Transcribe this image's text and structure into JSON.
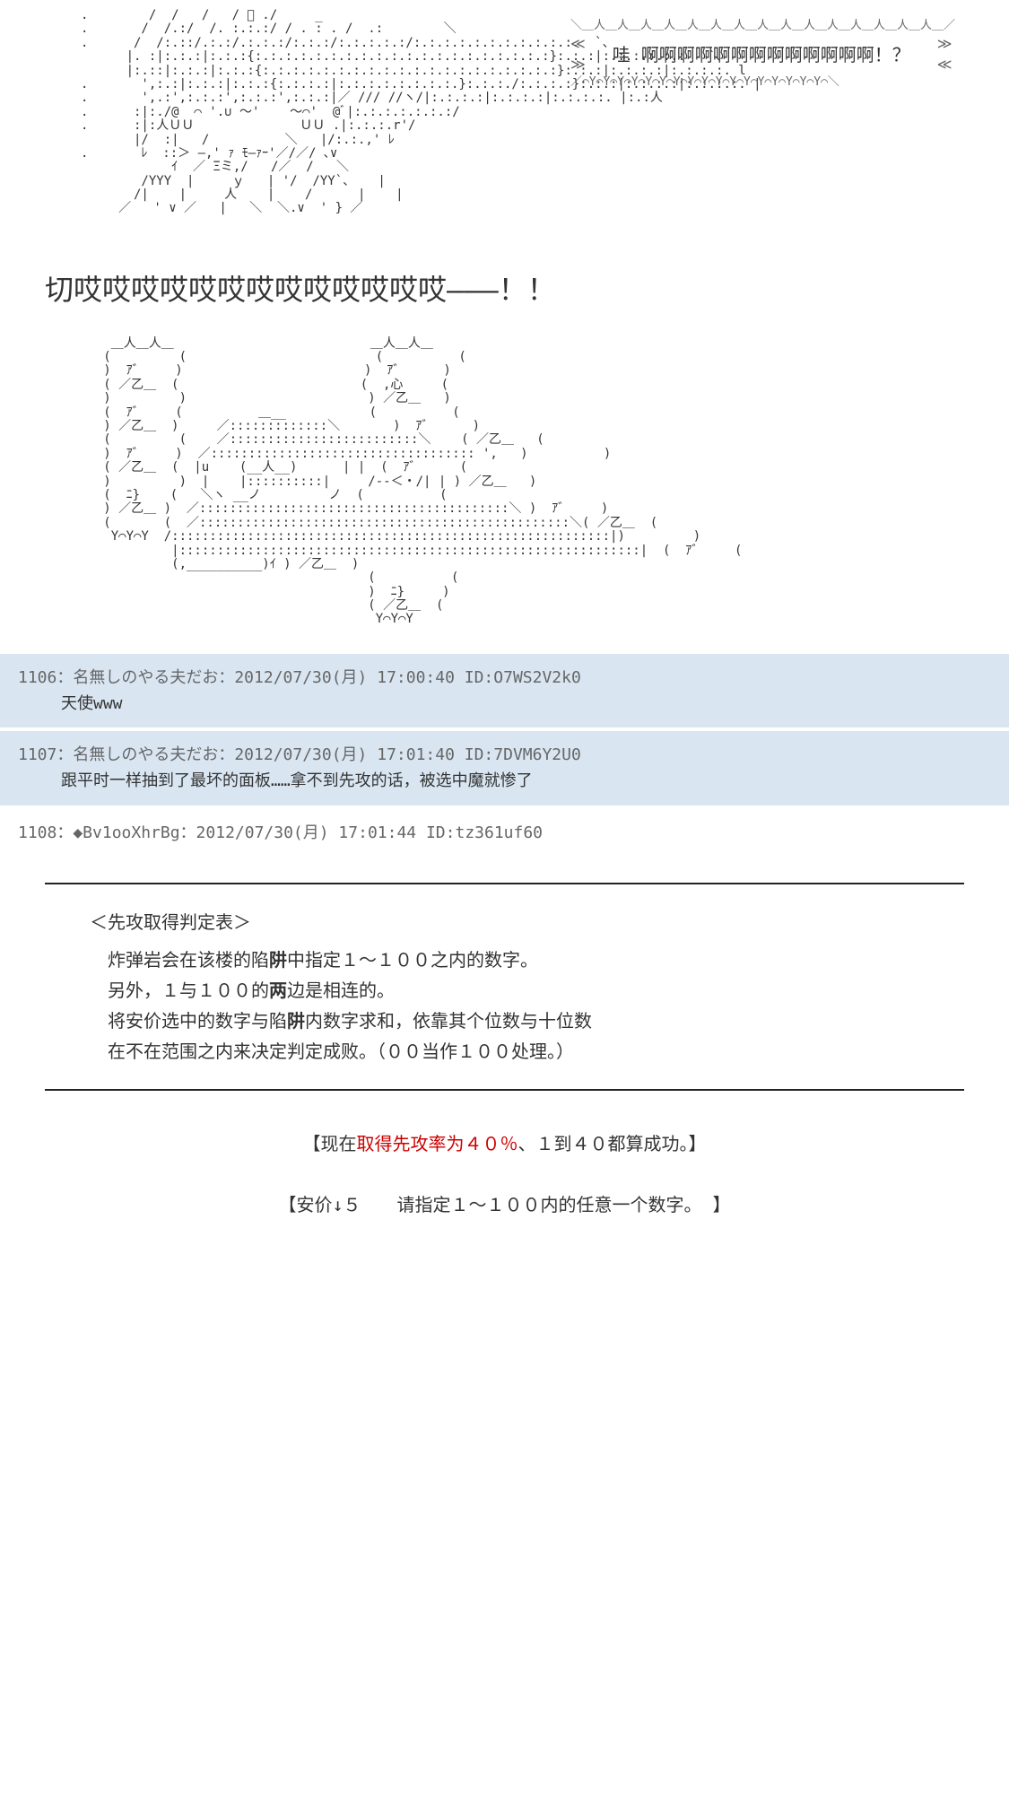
{
  "ascii1": ".        /  /   /   / ﾞ ./     _\n.       /  /.:/  /. :.:.:/ / . : . /  .:        ＼\n.      /  /:.::/.:.:/.:.:.:/:.:.:/:.:.:.:.:/:.:.:.:.:.:.:.:.:.:.:.  `、\n      |. :|:.:.:|:.:.:{:.:.:.:.:.:.:.:.:.:.:.:.:.:.:.:.:.:.:.:}:.:.:|:.:.:.:.:.:   `、\n      |:.::|:.:.:|:.:.:{:.:.:.:.:.:.:.:.:.:.:.:.:.:.:.:.:.:.:.:}:.:.:|:.:.:.:|:.:.:.:. l\n.       ',:.:|:.:.:|:.:.:{:.:.:.:|:.:.:.:.:.:.:.:.}:.:.:./:.:.:.:}:.:.:|:.:.:.:|:.:.:.:. |\n.       ',.:',:.:.:',:.:.:',:.:.:|／ /// //ヽ/|:.:.:.:|:.:.:.:|:.:.:.:. |:.:人\n.      :|:./@  ⌒ '.∪ ～'    ～⌒'  @ﾞ|:.:.:.:.:.:.:/\n.      :|:人ＵＵ              ＵＵ .|:.:.:.r'/\n       |/  :|   /          ＼   |/:.:.,' ﾚ\n.       ﾚ  ::＞ ―,' ｧ ﾓ―ｧｰ'／/／/ ､∨\n            ｲ  ／ Ξミ,/   /／  /   ＼\n        /YYY  |     ｙ   | '/  /YY`、   |\n       /|    |     人    |    /      |    |\n     ／   ' ∨ ／   |   ＼  ＼.∨  ' } ／",
  "speech": "哇 啊啊啊啊啊啊啊啊啊啊啊啊啊！？",
  "shout": "切哎哎哎哎哎哎哎哎哎哎哎哎哎———！！",
  "ascii2": "    ＿人＿人＿                          ＿人＿人＿\n   (         (                         (          (\n   )  ｱ゛    )                        )  ｱ゛     )\n   ( ／乙＿  (                        (  ,心     (\n   )         )                        ) ／乙＿   )\n   (  ｱ゛    (          ＿__           (          (\n   ) ／乙＿  )     ／:::::::::::::＼       )  ｱ゛     )\n   (         (    ／:::::::::::::::::::::::::＼    ( ／乙＿   (\n   )  ｱ゛    )  ／::::::::::::::::::::::::::::::::::: ',   )          )\n   ( ／乙＿  (  |u    (__人__)      | |  (  ｱ゛     (\n   )         )  |    |::::::::::|     /‐-＜・/| | ) ／乙＿   )\n   (  ﾆ}    (   ＼ヽ __ノ         ノ  (          (\n   ) ／乙＿ )  ／:::::::::::::::::::::::::::::::::::::::::＼ )  ｱ゛    )\n   (       (  ／:::::::::::::::::::::::::::::::::::::::::::::::::＼( ／乙＿  (\n    Y⌒Y⌒Y  /::::::::::::::::::::::::::::::::::::::::::::::::::::::::::|)         )\n            |:::::::::::::::::::::::::::::::::::::::::::::::::::::::::::::|  (  ｱ゛    (\n            (,__________)ｲ ) ／乙＿  )\n                                      (          (\n                                      )  ﾆ}     )\n                                      ( ／乙＿  (\n                                       Y⌒Y⌒Y",
  "posts": [
    {
      "num": "1106",
      "name": "名無しのやる夫だお",
      "date": "2012/07/30(月) 17:00:40",
      "id": "O7WS2V2k0",
      "body": "天使www",
      "highlighted": true
    },
    {
      "num": "1107",
      "name": "名無しのやる夫だお",
      "date": "2012/07/30(月) 17:01:40",
      "id": "7DVM6Y2U0",
      "body": "跟平时一样抽到了最坏的面板……拿不到先攻的话，被选中魔就惨了",
      "highlighted": true
    },
    {
      "num": "1108",
      "name": "◆Bv1ooXhrBg",
      "date": "2012/07/30(月) 17:01:44",
      "id": "tz361uf60",
      "body": "",
      "highlighted": false
    }
  ],
  "rules": {
    "title": "＜先攻取得判定表＞",
    "line1a": "炸弹岩会在该楼的陷",
    "line1b": "阱",
    "line1c": "中指定１～１００之内的数字。",
    "line2a": "另外，１与１００的",
    "line2b": "两",
    "line2c": "边是相连的。",
    "line3a": "将安价选中的数字与陷",
    "line3b": "阱",
    "line3c": "内数字求和，依靠其个位数与十位数",
    "line4": "在不在范围之内来决定判定成败。（００当作１００处理。）"
  },
  "result": {
    "prefix": "【现在",
    "red": "取得先攻率为４０％",
    "suffix": "、１到４０都算成功。】"
  },
  "ankou": "【安价↓５　　请指定１～１００内的任意一个数字。 】"
}
